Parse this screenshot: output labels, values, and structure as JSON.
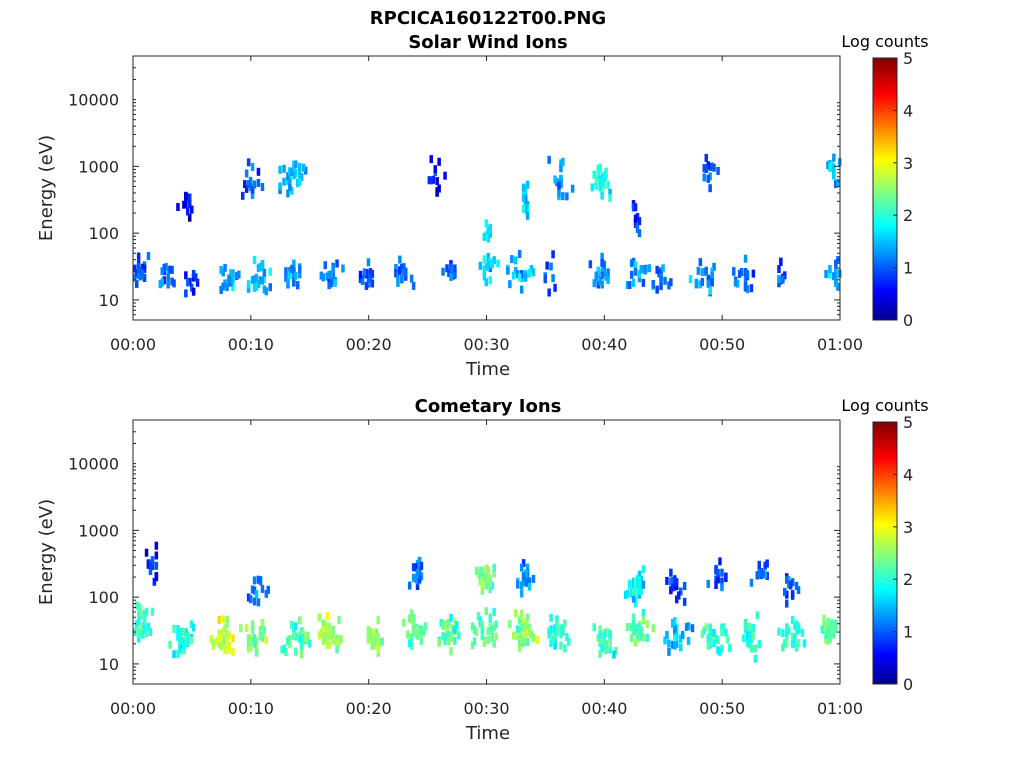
{
  "figure": {
    "title": "RPCICA160122T00.PNG",
    "colormap": "jet",
    "background": "#ffffff"
  },
  "chart_data": [
    {
      "type": "heatmap",
      "title": "Solar Wind Ions",
      "xlabel": "Time",
      "ylabel": "Energy (eV)",
      "x_ticks": [
        "00:00",
        "00:10",
        "00:20",
        "00:30",
        "00:40",
        "00:50",
        "01:00"
      ],
      "x_range_min": [
        0,
        60
      ],
      "y_scale": "log",
      "y_ticks": [
        "10",
        "100",
        "1000",
        "10000"
      ],
      "y_range_ev": [
        5,
        45000
      ],
      "colorbar": {
        "label": "Log counts",
        "ticks": [
          "0",
          "1",
          "2",
          "3",
          "4",
          "5"
        ],
        "range": [
          0,
          5
        ]
      },
      "clusters": [
        {
          "t": 0.4,
          "e": 25,
          "w": 1.2,
          "n": 22,
          "v": 1.0
        },
        {
          "t": 2.8,
          "e": 22,
          "w": 1.0,
          "n": 14,
          "v": 1.1
        },
        {
          "t": 5.0,
          "e": 22,
          "w": 1.2,
          "n": 12,
          "v": 0.9
        },
        {
          "t": 4.3,
          "e": 300,
          "w": 1.0,
          "n": 12,
          "v": 0.6
        },
        {
          "t": 8.0,
          "e": 22,
          "w": 1.3,
          "n": 18,
          "v": 1.4
        },
        {
          "t": 10.5,
          "e": 22,
          "w": 1.5,
          "n": 22,
          "v": 1.5
        },
        {
          "t": 10.0,
          "e": 600,
          "w": 1.5,
          "n": 16,
          "v": 1.0
        },
        {
          "t": 13.5,
          "e": 25,
          "w": 1.2,
          "n": 20,
          "v": 1.3
        },
        {
          "t": 13.5,
          "e": 700,
          "w": 1.5,
          "n": 28,
          "v": 1.6
        },
        {
          "t": 16.8,
          "e": 22,
          "w": 1.3,
          "n": 18,
          "v": 1.3
        },
        {
          "t": 19.8,
          "e": 22,
          "w": 1.2,
          "n": 18,
          "v": 1.0
        },
        {
          "t": 22.8,
          "e": 25,
          "w": 1.3,
          "n": 18,
          "v": 1.2
        },
        {
          "t": 25.8,
          "e": 700,
          "w": 1.5,
          "n": 12,
          "v": 0.6
        },
        {
          "t": 26.8,
          "e": 25,
          "w": 1.0,
          "n": 12,
          "v": 1.0
        },
        {
          "t": 30.0,
          "e": 28,
          "w": 1.0,
          "n": 16,
          "v": 1.6
        },
        {
          "t": 30.0,
          "e": 100,
          "w": 0.4,
          "n": 10,
          "v": 1.6
        },
        {
          "t": 32.8,
          "e": 25,
          "w": 1.5,
          "n": 20,
          "v": 1.5
        },
        {
          "t": 33.2,
          "e": 300,
          "w": 0.5,
          "n": 16,
          "v": 1.6
        },
        {
          "t": 35.3,
          "e": 25,
          "w": 0.8,
          "n": 8,
          "v": 1.0
        },
        {
          "t": 36.2,
          "e": 600,
          "w": 1.2,
          "n": 18,
          "v": 1.3
        },
        {
          "t": 39.6,
          "e": 25,
          "w": 1.5,
          "n": 20,
          "v": 1.3
        },
        {
          "t": 39.6,
          "e": 600,
          "w": 1.2,
          "n": 26,
          "v": 2.0
        },
        {
          "t": 42.8,
          "e": 25,
          "w": 1.5,
          "n": 18,
          "v": 1.3
        },
        {
          "t": 42.6,
          "e": 150,
          "w": 0.8,
          "n": 10,
          "v": 1.0
        },
        {
          "t": 44.8,
          "e": 22,
          "w": 1.2,
          "n": 14,
          "v": 1.2
        },
        {
          "t": 48.3,
          "e": 22,
          "w": 1.5,
          "n": 20,
          "v": 1.3
        },
        {
          "t": 48.5,
          "e": 800,
          "w": 1.2,
          "n": 14,
          "v": 1.1
        },
        {
          "t": 51.8,
          "e": 22,
          "w": 1.3,
          "n": 18,
          "v": 1.2
        },
        {
          "t": 55.0,
          "e": 22,
          "w": 1.0,
          "n": 10,
          "v": 1.0
        },
        {
          "t": 59.3,
          "e": 25,
          "w": 0.8,
          "n": 14,
          "v": 1.4
        },
        {
          "t": 59.3,
          "e": 900,
          "w": 0.8,
          "n": 14,
          "v": 1.5
        }
      ]
    },
    {
      "type": "heatmap",
      "title": "Cometary Ions",
      "xlabel": "Time",
      "ylabel": "Energy (eV)",
      "x_ticks": [
        "00:00",
        "00:10",
        "00:20",
        "00:30",
        "00:40",
        "00:50",
        "01:00"
      ],
      "x_range_min": [
        0,
        60
      ],
      "y_scale": "log",
      "y_ticks": [
        "10",
        "100",
        "1000",
        "10000"
      ],
      "y_range_ev": [
        5,
        45000
      ],
      "colorbar": {
        "label": "Log counts",
        "ticks": [
          "0",
          "1",
          "2",
          "3",
          "4",
          "5"
        ],
        "range": [
          0,
          5
        ]
      },
      "clusters": [
        {
          "t": 0.5,
          "e": 40,
          "w": 1.2,
          "n": 30,
          "v": 2.2
        },
        {
          "t": 1.5,
          "e": 300,
          "w": 1.0,
          "n": 14,
          "v": 0.7
        },
        {
          "t": 4.3,
          "e": 25,
          "w": 1.5,
          "n": 28,
          "v": 2.0
        },
        {
          "t": 7.5,
          "e": 25,
          "w": 1.5,
          "n": 30,
          "v": 2.8
        },
        {
          "t": 10.3,
          "e": 25,
          "w": 1.5,
          "n": 30,
          "v": 2.5
        },
        {
          "t": 10.5,
          "e": 120,
          "w": 1.5,
          "n": 14,
          "v": 1.2
        },
        {
          "t": 13.8,
          "e": 25,
          "w": 1.5,
          "n": 28,
          "v": 2.3
        },
        {
          "t": 16.5,
          "e": 30,
          "w": 1.5,
          "n": 30,
          "v": 2.7
        },
        {
          "t": 20.3,
          "e": 25,
          "w": 1.2,
          "n": 28,
          "v": 2.6
        },
        {
          "t": 23.8,
          "e": 30,
          "w": 1.5,
          "n": 30,
          "v": 2.4
        },
        {
          "t": 23.8,
          "e": 200,
          "w": 1.2,
          "n": 20,
          "v": 1.2
        },
        {
          "t": 26.8,
          "e": 30,
          "w": 1.5,
          "n": 30,
          "v": 2.3
        },
        {
          "t": 29.8,
          "e": 30,
          "w": 1.5,
          "n": 30,
          "v": 2.3
        },
        {
          "t": 29.8,
          "e": 200,
          "w": 1.0,
          "n": 30,
          "v": 2.4
        },
        {
          "t": 33.0,
          "e": 30,
          "w": 1.5,
          "n": 30,
          "v": 2.6
        },
        {
          "t": 33.0,
          "e": 200,
          "w": 1.2,
          "n": 22,
          "v": 1.4
        },
        {
          "t": 36.0,
          "e": 30,
          "w": 1.5,
          "n": 26,
          "v": 2.0
        },
        {
          "t": 39.8,
          "e": 25,
          "w": 1.5,
          "n": 26,
          "v": 2.1
        },
        {
          "t": 42.8,
          "e": 30,
          "w": 1.5,
          "n": 30,
          "v": 2.3
        },
        {
          "t": 42.5,
          "e": 150,
          "w": 1.2,
          "n": 30,
          "v": 1.8
        },
        {
          "t": 46.0,
          "e": 30,
          "w": 1.5,
          "n": 26,
          "v": 1.6
        },
        {
          "t": 46.0,
          "e": 150,
          "w": 1.2,
          "n": 16,
          "v": 1.0
        },
        {
          "t": 49.3,
          "e": 25,
          "w": 1.5,
          "n": 28,
          "v": 2.1
        },
        {
          "t": 49.5,
          "e": 200,
          "w": 1.0,
          "n": 14,
          "v": 1.0
        },
        {
          "t": 52.3,
          "e": 25,
          "w": 1.5,
          "n": 26,
          "v": 2.0
        },
        {
          "t": 53.0,
          "e": 250,
          "w": 1.5,
          "n": 14,
          "v": 1.0
        },
        {
          "t": 55.8,
          "e": 25,
          "w": 1.5,
          "n": 26,
          "v": 2.1
        },
        {
          "t": 55.8,
          "e": 120,
          "w": 1.0,
          "n": 14,
          "v": 1.0
        },
        {
          "t": 59.0,
          "e": 30,
          "w": 1.2,
          "n": 26,
          "v": 2.4
        }
      ]
    }
  ]
}
